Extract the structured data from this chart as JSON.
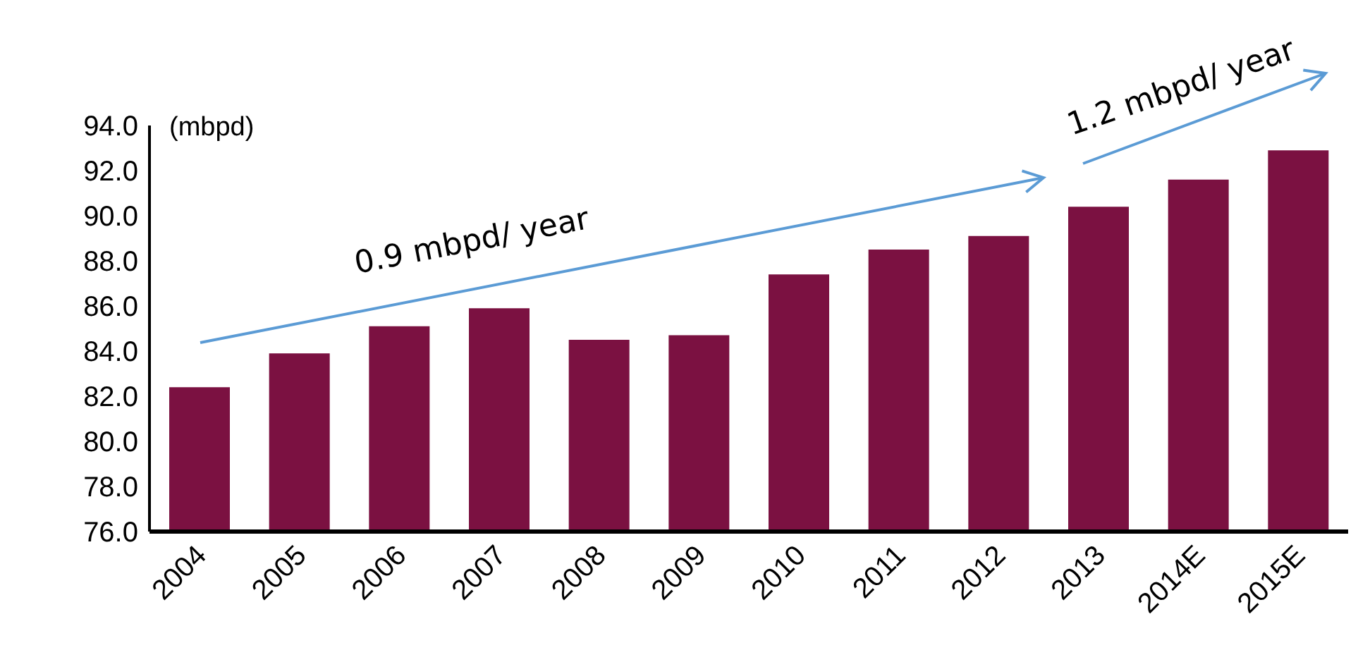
{
  "chart_data": {
    "type": "bar",
    "ylabel": "(mbpd)",
    "categories": [
      "2004",
      "2005",
      "2006",
      "2007",
      "2008",
      "2009",
      "2010",
      "2011",
      "2012",
      "2013",
      "2014E",
      "2015E"
    ],
    "values": [
      82.4,
      83.9,
      85.1,
      85.9,
      84.5,
      84.7,
      87.4,
      88.5,
      89.1,
      90.4,
      91.6,
      92.9
    ],
    "color": "#7b1141",
    "ylim": [
      76,
      94
    ],
    "yticks": [
      {
        "value": 76,
        "label": "76.0"
      },
      {
        "value": 78,
        "label": "78.0"
      },
      {
        "value": 80,
        "label": "80.0"
      },
      {
        "value": 82,
        "label": "82.0"
      },
      {
        "value": 84,
        "label": "84.0"
      },
      {
        "value": 86,
        "label": "86.0"
      },
      {
        "value": 88,
        "label": "88.0"
      },
      {
        "value": 90,
        "label": "90.0"
      },
      {
        "value": 92,
        "label": "92.0"
      },
      {
        "value": 94,
        "label": "94.0"
      }
    ],
    "grid": false,
    "annotations": [
      "0.9 mbpd/ year",
      "1.2 mbpd/ year"
    ]
  }
}
